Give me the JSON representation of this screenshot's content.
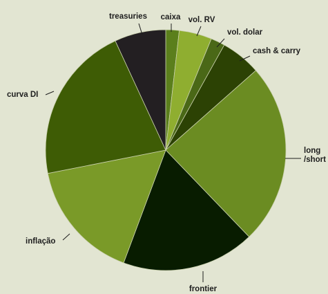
{
  "chart_data": {
    "type": "pie",
    "title": "",
    "start_angle_deg": 0,
    "direction": "clockwise",
    "grid": false,
    "legend": "none (direct labels)",
    "slices": [
      {
        "label": "caixa",
        "value": 1.8,
        "color": "#5b7f1c"
      },
      {
        "label": "vol. RV",
        "value": 4.4,
        "color": "#8fae30"
      },
      {
        "label": "vol. dolar",
        "value": 1.9,
        "color": "#4a6817"
      },
      {
        "label": "cash & carry",
        "value": 5.4,
        "color": "#2c4204"
      },
      {
        "label": "long\n/short",
        "value": 24.3,
        "color": "#6b8c22"
      },
      {
        "label": "frontier",
        "value": 17.9,
        "color": "#081c00"
      },
      {
        "label": "inflação",
        "value": 16.2,
        "color": "#7a9a28"
      },
      {
        "label": "curva DI",
        "value": 21.2,
        "color": "#3e5c05"
      },
      {
        "label": "treasuries",
        "value": 6.9,
        "color": "#231f22"
      }
    ]
  }
}
